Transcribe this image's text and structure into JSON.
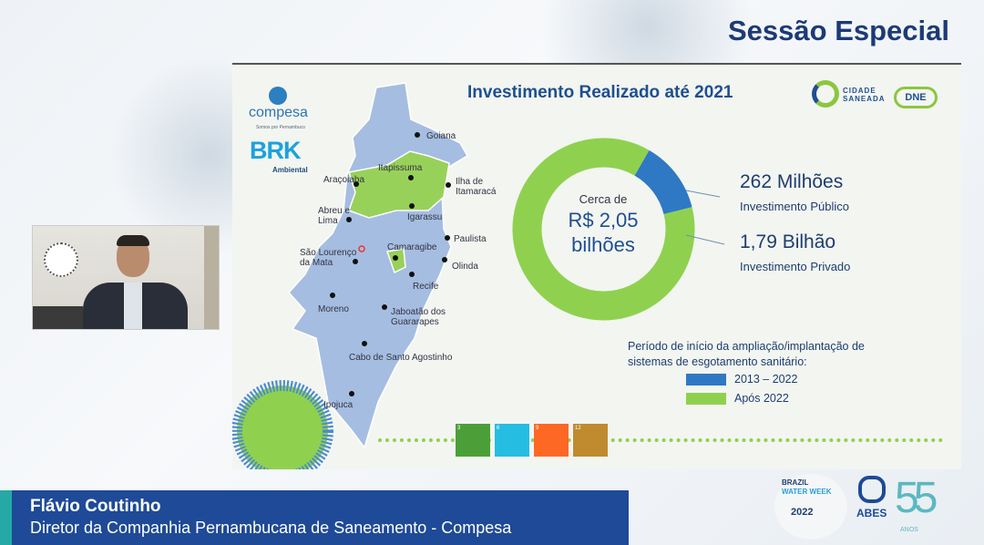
{
  "header": {
    "session_title": "Sessão Especial"
  },
  "slide": {
    "title": "Investimento Realizado até 2021",
    "logos": {
      "compesa": "compesa",
      "compesa_tagline": "Somos por Pernambuco",
      "brk": "BRK",
      "brk_sub": "Ambiental",
      "cidade_saneada": "CIDADE SANEADA",
      "dne": "DNE"
    },
    "map_labels": [
      "Goiana",
      "Itapissuma",
      "Ilha de Itamaracá",
      "Araçoiaba",
      "Igarassu",
      "Abreu e Lima",
      "Paulista",
      "Camaragibe",
      "São Lourenço da Mata",
      "Olinda",
      "Recife",
      "Moreno",
      "Jaboatão dos Guararapes",
      "Cabo de Santo Agostinho",
      "Ipojuca"
    ],
    "donut_center": {
      "line1": "Cerca de",
      "line2": "R$ 2,05",
      "line3": "bilhões"
    },
    "public": {
      "value": "262 Milhões",
      "label": "Investimento Público"
    },
    "private": {
      "value": "1,79 Bilhão",
      "label": "Investimento Privado"
    },
    "legend_title": "Período de início da ampliação/implantação de sistemas de esgotamento sanitário:",
    "legend": [
      {
        "label": "2013 – 2022",
        "color": "#2f78c4"
      },
      {
        "label": "Após 2022",
        "color": "#8fd14f"
      }
    ],
    "sdg_icons": [
      {
        "num": "3",
        "color": "#4c9f38"
      },
      {
        "num": "6",
        "color": "#26bde2"
      },
      {
        "num": "9",
        "color": "#fd6925"
      },
      {
        "num": "12",
        "color": "#bf8b2e"
      }
    ]
  },
  "chart_data": {
    "type": "pie",
    "donut": true,
    "categories": [
      "Investimento Público",
      "Investimento Privado"
    ],
    "values": [
      262,
      1790
    ],
    "unit": "R$ milhões",
    "colors": [
      "#2f78c4",
      "#8fd14f"
    ]
  },
  "speaker": {
    "name": "Flávio Coutinho",
    "role": "Diretor da Companhia Pernambucana de Saneamento - Compesa"
  },
  "event_logos": {
    "bww_line1": "BRAZIL",
    "bww_line2": "WATER WEEK",
    "bww_year": "2022",
    "abes": "ABES",
    "abes_years": "55",
    "abes_anos": "ANOS"
  }
}
